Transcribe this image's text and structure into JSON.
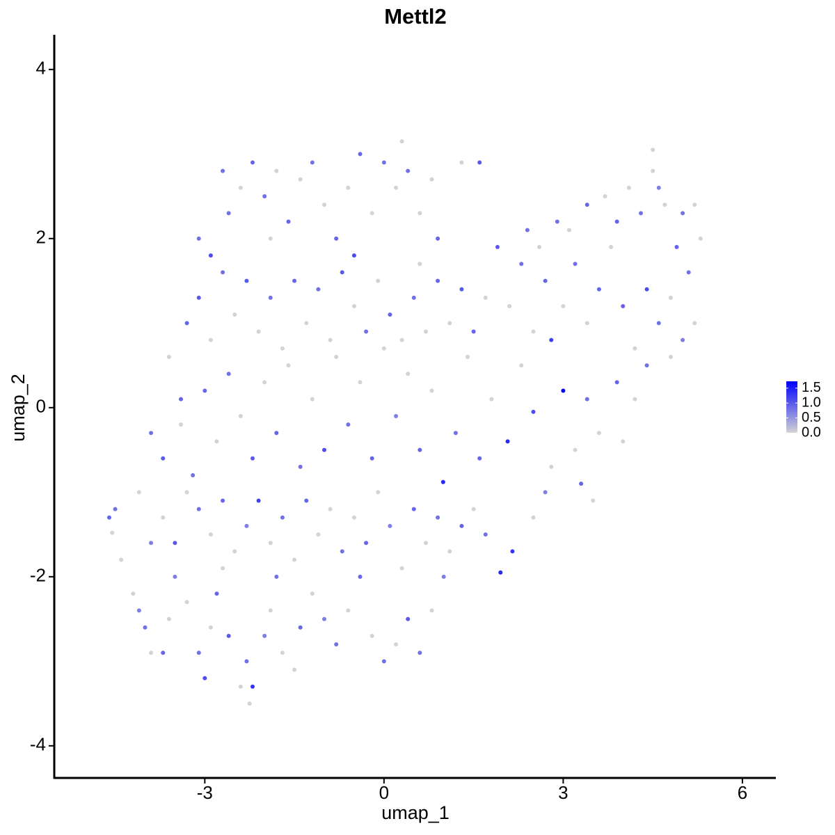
{
  "chart_data": {
    "type": "scatter",
    "title": "Mettl2",
    "x_label": "umap_1",
    "y_label": "umap_2",
    "x": [
      -4.6,
      -4.5,
      -4.55,
      -4.4,
      -4.2,
      -4.1,
      -4.0,
      -3.9,
      -3.7,
      -3.6,
      -3.5,
      -3.3,
      -3.1,
      -3.0,
      -2.9,
      -2.8,
      -2.7,
      -2.6,
      -2.4,
      -2.3,
      -2.25,
      -2.2,
      -2.0,
      -1.9,
      -1.8,
      -1.7,
      -1.5,
      -1.4,
      -1.2,
      -1.0,
      -0.8,
      -0.6,
      -0.4,
      -0.2,
      0.0,
      0.2,
      0.4,
      0.6,
      0.8,
      1.0,
      -3.9,
      -3.7,
      -3.5,
      -3.3,
      -3.1,
      -2.9,
      -2.7,
      -2.5,
      -2.3,
      -2.1,
      -1.9,
      -1.7,
      -1.5,
      -1.3,
      -1.1,
      -0.9,
      -0.7,
      -0.5,
      -0.3,
      -0.1,
      0.1,
      0.3,
      0.5,
      0.7,
      0.9,
      1.1,
      1.3,
      1.5,
      1.7,
      1.95,
      2.15,
      2.5,
      2.7,
      -3.7,
      -3.4,
      -3.2,
      -3.0,
      -2.8,
      -2.6,
      -2.4,
      -2.2,
      -2.0,
      -1.8,
      -1.6,
      -1.4,
      -1.2,
      -1.0,
      -0.8,
      -0.6,
      -0.4,
      -0.2,
      0.0,
      0.2,
      0.4,
      0.6,
      0.8,
      0.99,
      1.2,
      1.4,
      1.6,
      1.8,
      2.07,
      2.3,
      2.5,
      2.8,
      3.0,
      3.2,
      3.4,
      3.6,
      3.9,
      4.2,
      4.4,
      3.3,
      3.5,
      4.0,
      -3.6,
      -3.3,
      -3.1,
      -2.9,
      -2.7,
      -2.5,
      -2.3,
      -2.1,
      -1.9,
      -1.7,
      -1.5,
      -1.3,
      -1.1,
      -0.9,
      -0.7,
      -0.5,
      -0.3,
      -0.1,
      0.1,
      0.3,
      0.5,
      0.7,
      0.9,
      1.1,
      1.3,
      1.5,
      1.7,
      1.9,
      2.1,
      2.3,
      2.5,
      2.7,
      2.8,
      3.0,
      3.2,
      3.4,
      3.6,
      3.8,
      4.0,
      4.2,
      4.4,
      4.6,
      4.8,
      5.0,
      5.2,
      5.1,
      5.3,
      4.9,
      4.7,
      4.5,
      4.6,
      4.3,
      4.1,
      3.9,
      3.7,
      3.4,
      3.1,
      2.9,
      2.6,
      2.4,
      4.5,
      5.0,
      5.2,
      4.8,
      -3.1,
      -2.9,
      -2.6,
      -2.4,
      -2.2,
      -2.0,
      -1.8,
      -1.6,
      -1.4,
      -1.2,
      -1.0,
      -0.8,
      -0.6,
      -0.4,
      -0.2,
      0.0,
      0.2,
      0.4,
      0.6,
      0.8,
      0.3,
      -0.5,
      -1.9,
      0.9,
      1.3,
      1.6,
      0.6,
      -2.7,
      -3.4,
      -3.9,
      -4.1
    ],
    "y": [
      -1.3,
      -1.2,
      -1.48,
      -1.8,
      -2.2,
      -2.4,
      -2.6,
      -2.9,
      -2.9,
      -2.5,
      -2.0,
      -2.3,
      -2.9,
      -3.2,
      -2.6,
      -2.2,
      -1.9,
      -2.7,
      -3.3,
      -3.0,
      -3.5,
      -3.3,
      -2.7,
      -2.4,
      -2.0,
      -2.9,
      -3.1,
      -2.6,
      -2.2,
      -2.5,
      -2.8,
      -2.4,
      -2.0,
      -2.7,
      -3.0,
      -2.8,
      -2.5,
      -2.9,
      -2.4,
      -2.0,
      -1.6,
      -1.3,
      -1.6,
      -1.0,
      -1.2,
      -1.5,
      -1.1,
      -1.7,
      -1.4,
      -1.1,
      -1.6,
      -1.3,
      -1.8,
      -1.1,
      -1.5,
      -1.2,
      -1.7,
      -1.3,
      -1.6,
      -1.0,
      -1.4,
      -1.9,
      -1.2,
      -1.6,
      -1.3,
      -1.7,
      -1.4,
      -1.2,
      -1.5,
      -1.95,
      -1.7,
      -1.3,
      -1.0,
      -0.6,
      -0.2,
      -0.8,
      0.2,
      -0.4,
      0.4,
      -0.1,
      -0.6,
      0.3,
      -0.3,
      0.5,
      -0.7,
      0.1,
      -0.5,
      0.6,
      -0.2,
      0.3,
      -0.6,
      0.7,
      -0.1,
      0.4,
      -0.5,
      0.2,
      -0.88,
      -0.3,
      0.6,
      -0.6,
      0.1,
      -0.4,
      0.5,
      -0.05,
      -0.7,
      0.2,
      -0.5,
      0.1,
      -0.3,
      0.3,
      0.1,
      0.5,
      -0.9,
      -1.1,
      -0.4,
      0.6,
      1.0,
      1.3,
      0.8,
      1.6,
      1.1,
      1.5,
      0.9,
      1.3,
      0.7,
      1.5,
      1.0,
      1.4,
      0.8,
      1.6,
      1.2,
      0.9,
      1.5,
      1.1,
      0.8,
      1.3,
      0.9,
      1.5,
      1.0,
      1.4,
      0.9,
      1.3,
      1.9,
      1.2,
      1.7,
      0.9,
      1.5,
      0.8,
      1.2,
      1.7,
      1.0,
      1.4,
      1.9,
      1.2,
      0.7,
      1.4,
      1.0,
      0.6,
      0.8,
      1.0,
      1.6,
      2.0,
      1.9,
      2.4,
      2.8,
      2.6,
      2.3,
      2.6,
      2.2,
      2.5,
      2.4,
      2.1,
      2.2,
      1.9,
      2.1,
      3.05,
      2.3,
      2.4,
      1.3,
      2.0,
      1.8,
      2.3,
      2.6,
      2.9,
      2.5,
      2.8,
      2.2,
      2.7,
      2.9,
      2.4,
      2.0,
      2.6,
      3.0,
      2.3,
      2.9,
      2.6,
      2.8,
      2.3,
      2.7,
      3.15,
      1.8,
      2.0,
      2.0,
      2.9,
      2.9,
      1.7,
      2.8,
      0.1,
      -0.3,
      -1.0
    ],
    "values": [
      0.9,
      0.8,
      0,
      0,
      0,
      0.7,
      0.8,
      0,
      0.9,
      0,
      0.7,
      0,
      0.8,
      1.1,
      0,
      0.9,
      0,
      1.0,
      0,
      0.8,
      0,
      1.3,
      0.7,
      0,
      0.8,
      0,
      0,
      0.9,
      0,
      0.7,
      0.8,
      0,
      0.9,
      0,
      0.8,
      0,
      1.0,
      0.8,
      0,
      0.7,
      0.7,
      0,
      1.0,
      0,
      0.8,
      0,
      0.9,
      0,
      0.7,
      1.2,
      0,
      0.8,
      0,
      0.9,
      0,
      0,
      0.8,
      0,
      0.9,
      0,
      0.7,
      0,
      0.9,
      0,
      0.8,
      0,
      0.9,
      0,
      0.8,
      1.4,
      1.3,
      0,
      0.7,
      1.0,
      0,
      0.8,
      0.9,
      0,
      0.8,
      0,
      1.0,
      0,
      0.9,
      0,
      0.8,
      0,
      1.1,
      0,
      0.8,
      0,
      0.9,
      0,
      0.7,
      0,
      0.9,
      0,
      1.4,
      0.8,
      0,
      0.9,
      0,
      1.4,
      0,
      1.1,
      0,
      1.7,
      0,
      0.8,
      0,
      0.9,
      0,
      0.8,
      0.9,
      0,
      0,
      0,
      0.9,
      1.0,
      0,
      0.8,
      0,
      1.0,
      0,
      0.8,
      0,
      0.9,
      0,
      0.8,
      0,
      1.0,
      0,
      0.8,
      0,
      0.9,
      0,
      0.8,
      0,
      0.9,
      0,
      1.0,
      0.9,
      0,
      1.0,
      0,
      0.8,
      0,
      0.9,
      1.2,
      0,
      0.8,
      0,
      0.9,
      0,
      0.9,
      0,
      1.1,
      0.8,
      0,
      0.7,
      0,
      0.8,
      0,
      0.9,
      0,
      0,
      0.7,
      0.8,
      0,
      0.9,
      0,
      0.9,
      0,
      0.8,
      0,
      0.8,
      0,
      0.8,
      0,
      0,
      0.8,
      1.1,
      0.8,
      0,
      0.9,
      0.8,
      0,
      0.9,
      0,
      0.8,
      0,
      0.9,
      0,
      0.9,
      0,
      0.8,
      0,
      0.8,
      0,
      0,
      0,
      1.1,
      0,
      0.9,
      0,
      1.0,
      0,
      0.8,
      0.9,
      0.8,
      0
    ],
    "color_low": "#d3d3d3",
    "color_high": "#0000ff",
    "colorlim": [
      0,
      1.73
    ],
    "colorticks": [
      {
        "value": 0,
        "label": "0.0"
      },
      {
        "value": 0.5,
        "label": "0.5"
      },
      {
        "value": 1,
        "label": "1.0"
      },
      {
        "value": 1.5,
        "label": "1.5"
      }
    ],
    "xlim": [
      -5.52,
      6.56
    ],
    "xticks": [
      -3,
      0,
      3,
      6
    ],
    "ylim": [
      -4.38,
      4.41
    ],
    "yticks": [
      -4,
      -2,
      0,
      2,
      4
    ],
    "grid": false
  }
}
